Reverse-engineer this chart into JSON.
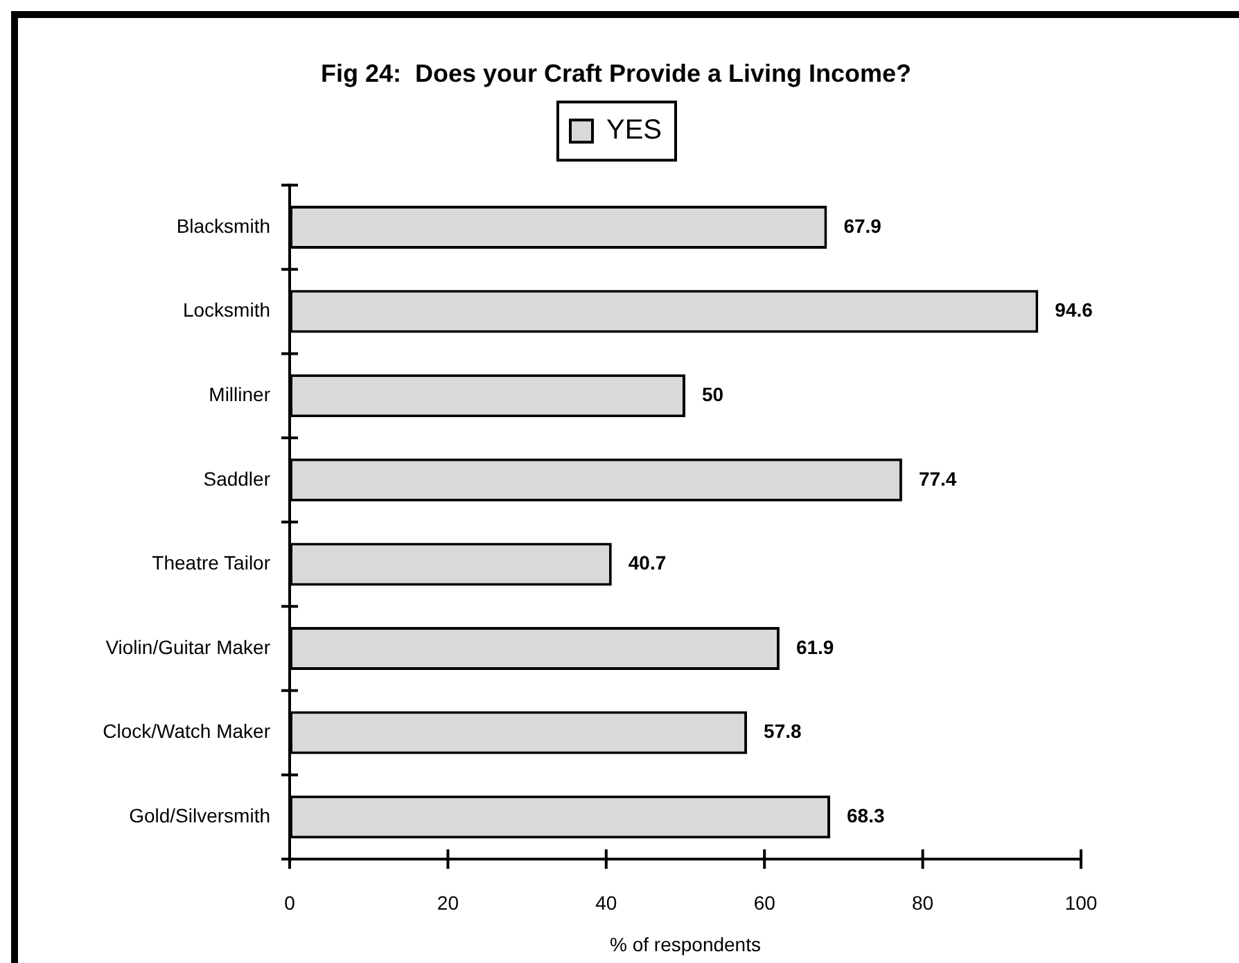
{
  "chart_data": {
    "type": "bar",
    "orientation": "horizontal",
    "title": "Fig 24:  Does your Craft Provide a Living Income?",
    "xlabel": "% of respondents",
    "categories": [
      "Blacksmith",
      "Locksmith",
      "Milliner",
      "Saddler",
      "Theatre Tailor",
      "Violin/Guitar Maker",
      "Clock/Watch Maker",
      "Gold/Silversmith"
    ],
    "series": [
      {
        "name": "YES",
        "color": "#d9d9d9",
        "values": [
          67.9,
          94.6,
          50,
          77.4,
          40.7,
          61.9,
          57.8,
          68.3
        ]
      }
    ],
    "xlim": [
      0,
      100
    ],
    "xticks": [
      0,
      20,
      40,
      60,
      80,
      100
    ],
    "data_labels": true,
    "legend": "top",
    "grid": false
  }
}
